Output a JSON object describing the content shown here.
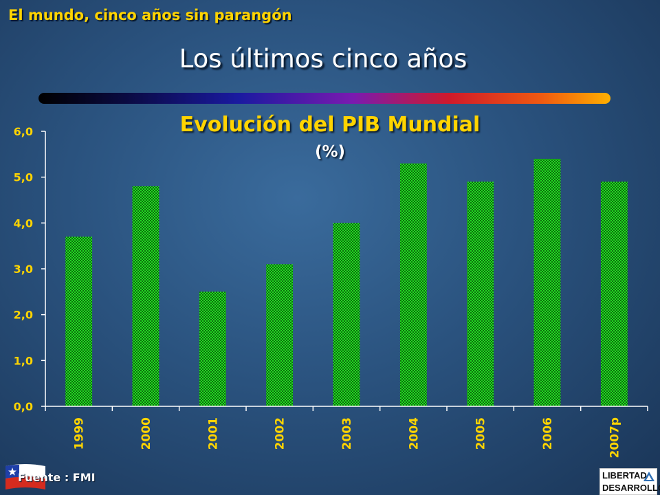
{
  "header": {
    "kicker": "El mundo, cinco años sin parangón",
    "title": "Los últimos cinco años"
  },
  "footer": {
    "source": "Fuente : FMI",
    "logo_line1": "LIBERTAD",
    "logo_line2": "DESARROLLO"
  },
  "chart_data": {
    "type": "bar",
    "title": "Evolución del PIB Mundial",
    "subtitle": "(%)",
    "categories": [
      "1999",
      "2000",
      "2001",
      "2002",
      "2003",
      "2004",
      "2005",
      "2006",
      "2007p"
    ],
    "values": [
      3.7,
      4.8,
      2.5,
      3.1,
      4.0,
      5.3,
      4.9,
      5.4,
      4.9
    ],
    "ylim": [
      0,
      6
    ],
    "yticks": [
      "0,0",
      "1,0",
      "2,0",
      "3,0",
      "4,0",
      "5,0",
      "6,0"
    ],
    "grid": false,
    "legend": "none",
    "colors": {
      "bar": "#22dd22",
      "bar_dark": "#0d6a0d",
      "axis_text": "#ffd400",
      "axis_line": "#ffffff"
    }
  }
}
